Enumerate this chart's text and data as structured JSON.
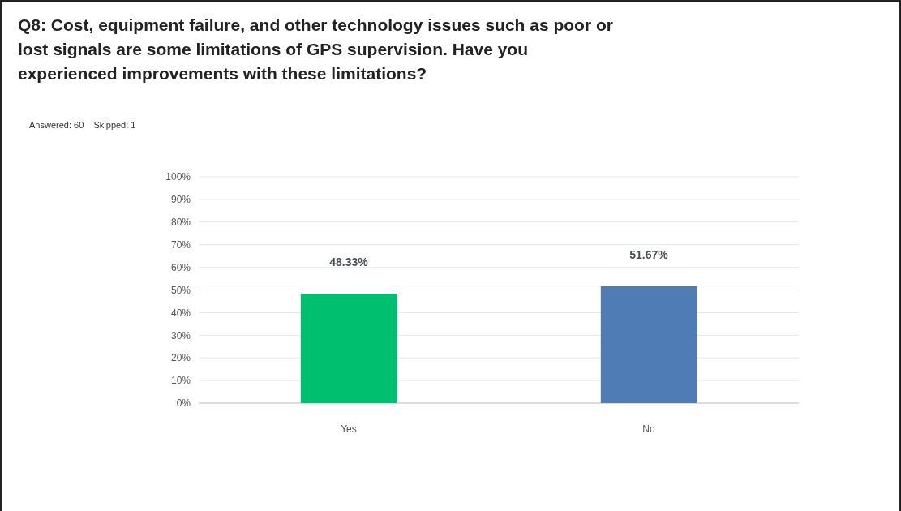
{
  "chart_data": {
    "type": "bar",
    "title": "Q8: Cost, equipment failure, and other technology issues such as poor or lost signals are some limitations of GPS supervision.  Have you experienced improvements with these limitations?",
    "subtitle": "Answered: 60    Skipped: 1",
    "categories": [
      "Yes",
      "No"
    ],
    "values": [
      48.33,
      51.67
    ],
    "colors": [
      "#00bf6f",
      "#507cb6"
    ],
    "value_labels": [
      "48.33%",
      "51.67%"
    ],
    "ylim": [
      0,
      100
    ],
    "yticks": [
      {
        "value": 0,
        "label": "0%"
      },
      {
        "value": 10,
        "label": "10%"
      },
      {
        "value": 20,
        "label": "20%"
      },
      {
        "value": 30,
        "label": "30%"
      },
      {
        "value": 40,
        "label": "40%"
      },
      {
        "value": 50,
        "label": "50%"
      },
      {
        "value": 60,
        "label": "60%"
      },
      {
        "value": 70,
        "label": "70%"
      },
      {
        "value": 80,
        "label": "80%"
      },
      {
        "value": 90,
        "label": "90%"
      },
      {
        "value": 100,
        "label": "100%"
      }
    ],
    "grid": "y"
  }
}
